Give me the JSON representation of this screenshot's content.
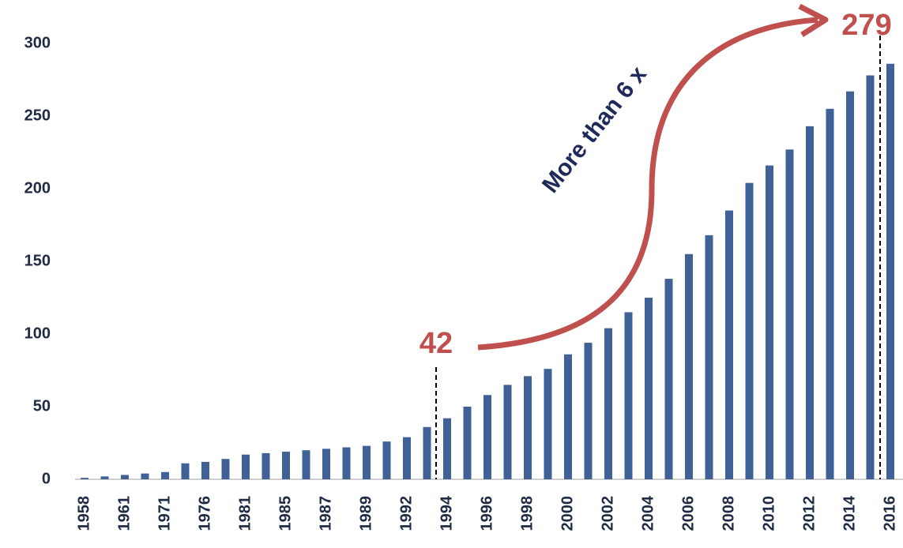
{
  "chart_data": {
    "type": "bar",
    "categories": [
      "1958",
      null,
      "1961",
      null,
      "1971",
      null,
      "1976",
      null,
      "1981",
      null,
      "1985",
      null,
      "1987",
      null,
      "1989",
      null,
      "1992",
      null,
      "1994",
      null,
      "1996",
      null,
      "1998",
      null,
      "2000",
      null,
      "2002",
      null,
      "2004",
      null,
      "2006",
      null,
      "2008",
      null,
      "2010",
      null,
      "2012",
      null,
      "2014",
      null,
      "2016"
    ],
    "values": [
      1,
      2,
      3,
      4,
      5,
      11,
      12,
      14,
      17,
      18,
      19,
      20,
      21,
      22,
      23,
      26,
      29,
      36,
      42,
      50,
      58,
      65,
      71,
      76,
      86,
      94,
      104,
      115,
      125,
      138,
      155,
      168,
      185,
      204,
      216,
      227,
      243,
      255,
      267,
      278,
      286
    ],
    "color": "#3f6196",
    "ylim": [
      0,
      300
    ],
    "yticks": [
      0,
      50,
      100,
      150,
      200,
      250,
      300
    ],
    "grid": false,
    "annotations": [
      "42",
      "279",
      "More than 6 x"
    ]
  }
}
